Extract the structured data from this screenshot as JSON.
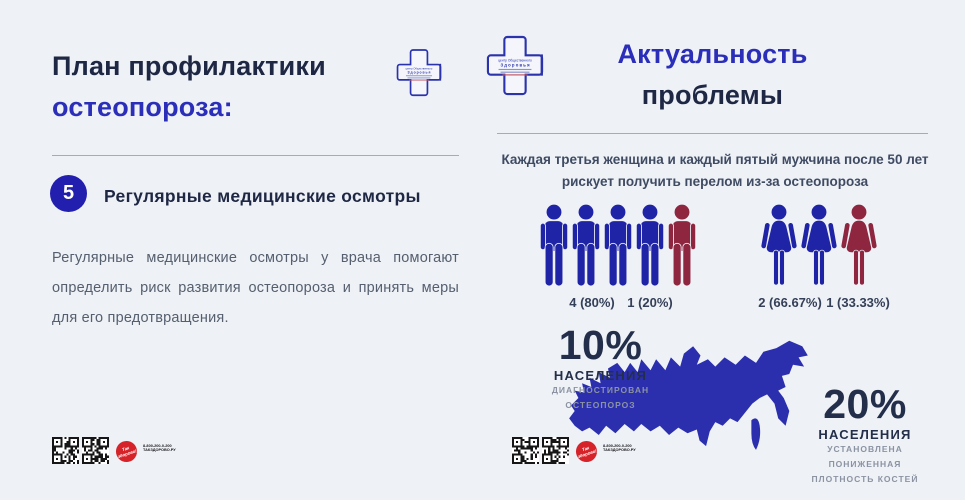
{
  "theme": {
    "background": "#eef1f6",
    "navy": "#1e2743",
    "blue": "#2b2eb8",
    "figure_blue": "#1f23a6",
    "figure_red": "#8e2640",
    "map_blue": "#2b2fae",
    "brand_red": "#d6232a"
  },
  "left": {
    "title_line1": "План профилактики",
    "title_line2": "остеопороза:",
    "step_number": "5",
    "step_title": "Регулярные медицинские осмотры",
    "step_text": "Регулярные медицинские осмотры у врача помогают определить риск развития остеопороза и принять меры для его предотвращения."
  },
  "right": {
    "title_line1": "Актуальность",
    "title_line2": "проблемы",
    "subtitle_line1": "Каждая третья женщина и каждый пятый мужчина после 50 лет",
    "subtitle_line2": "рискует получить перелом из-за остеопороза",
    "stat_10": {
      "value": "10%",
      "title": "НАСЕЛЕНИЯ",
      "line1": "ДИАГНОСТИРОВАН",
      "line2": "ОСТЕОПОРОЗ"
    },
    "stat_20": {
      "value": "20%",
      "title": "НАСЕЛЕНИЯ",
      "line1": "УСТАНОВЛЕНА",
      "line2": "ПОНИЖЕННАЯ",
      "line3": "ПЛОТНОСТЬ КОСТЕЙ"
    }
  },
  "logo": {
    "line1": "центр Общественного",
    "line2": "З д о р о в ь я"
  },
  "footer": {
    "brand_line1": "Так",
    "brand_line2": "здорово!",
    "hotline": "8-800-200-0-200",
    "site": "ТАКЗДОРОВО.РУ"
  },
  "chart_data": {
    "type": "pictograph",
    "title": "Актуальность проблемы",
    "description": "Каждая третья женщина и каждый пятый мужчина после 50 лет рискует получить перелом из-за остеопороза",
    "groups": [
      {
        "name": "мужчины",
        "icon": "male",
        "total": 5,
        "at_risk": 1,
        "labels": [
          "4 (80%)",
          "1 (20%)"
        ]
      },
      {
        "name": "женщины",
        "icon": "female",
        "total": 3,
        "at_risk": 1,
        "labels": [
          "2 (66.67%)",
          "1 (33.33%)"
        ]
      }
    ],
    "stats": [
      {
        "value": "10%",
        "unit": "населения",
        "note": "диагностирован остеопороз"
      },
      {
        "value": "20%",
        "unit": "населения",
        "note": "установлена пониженная плотность костей"
      }
    ]
  }
}
